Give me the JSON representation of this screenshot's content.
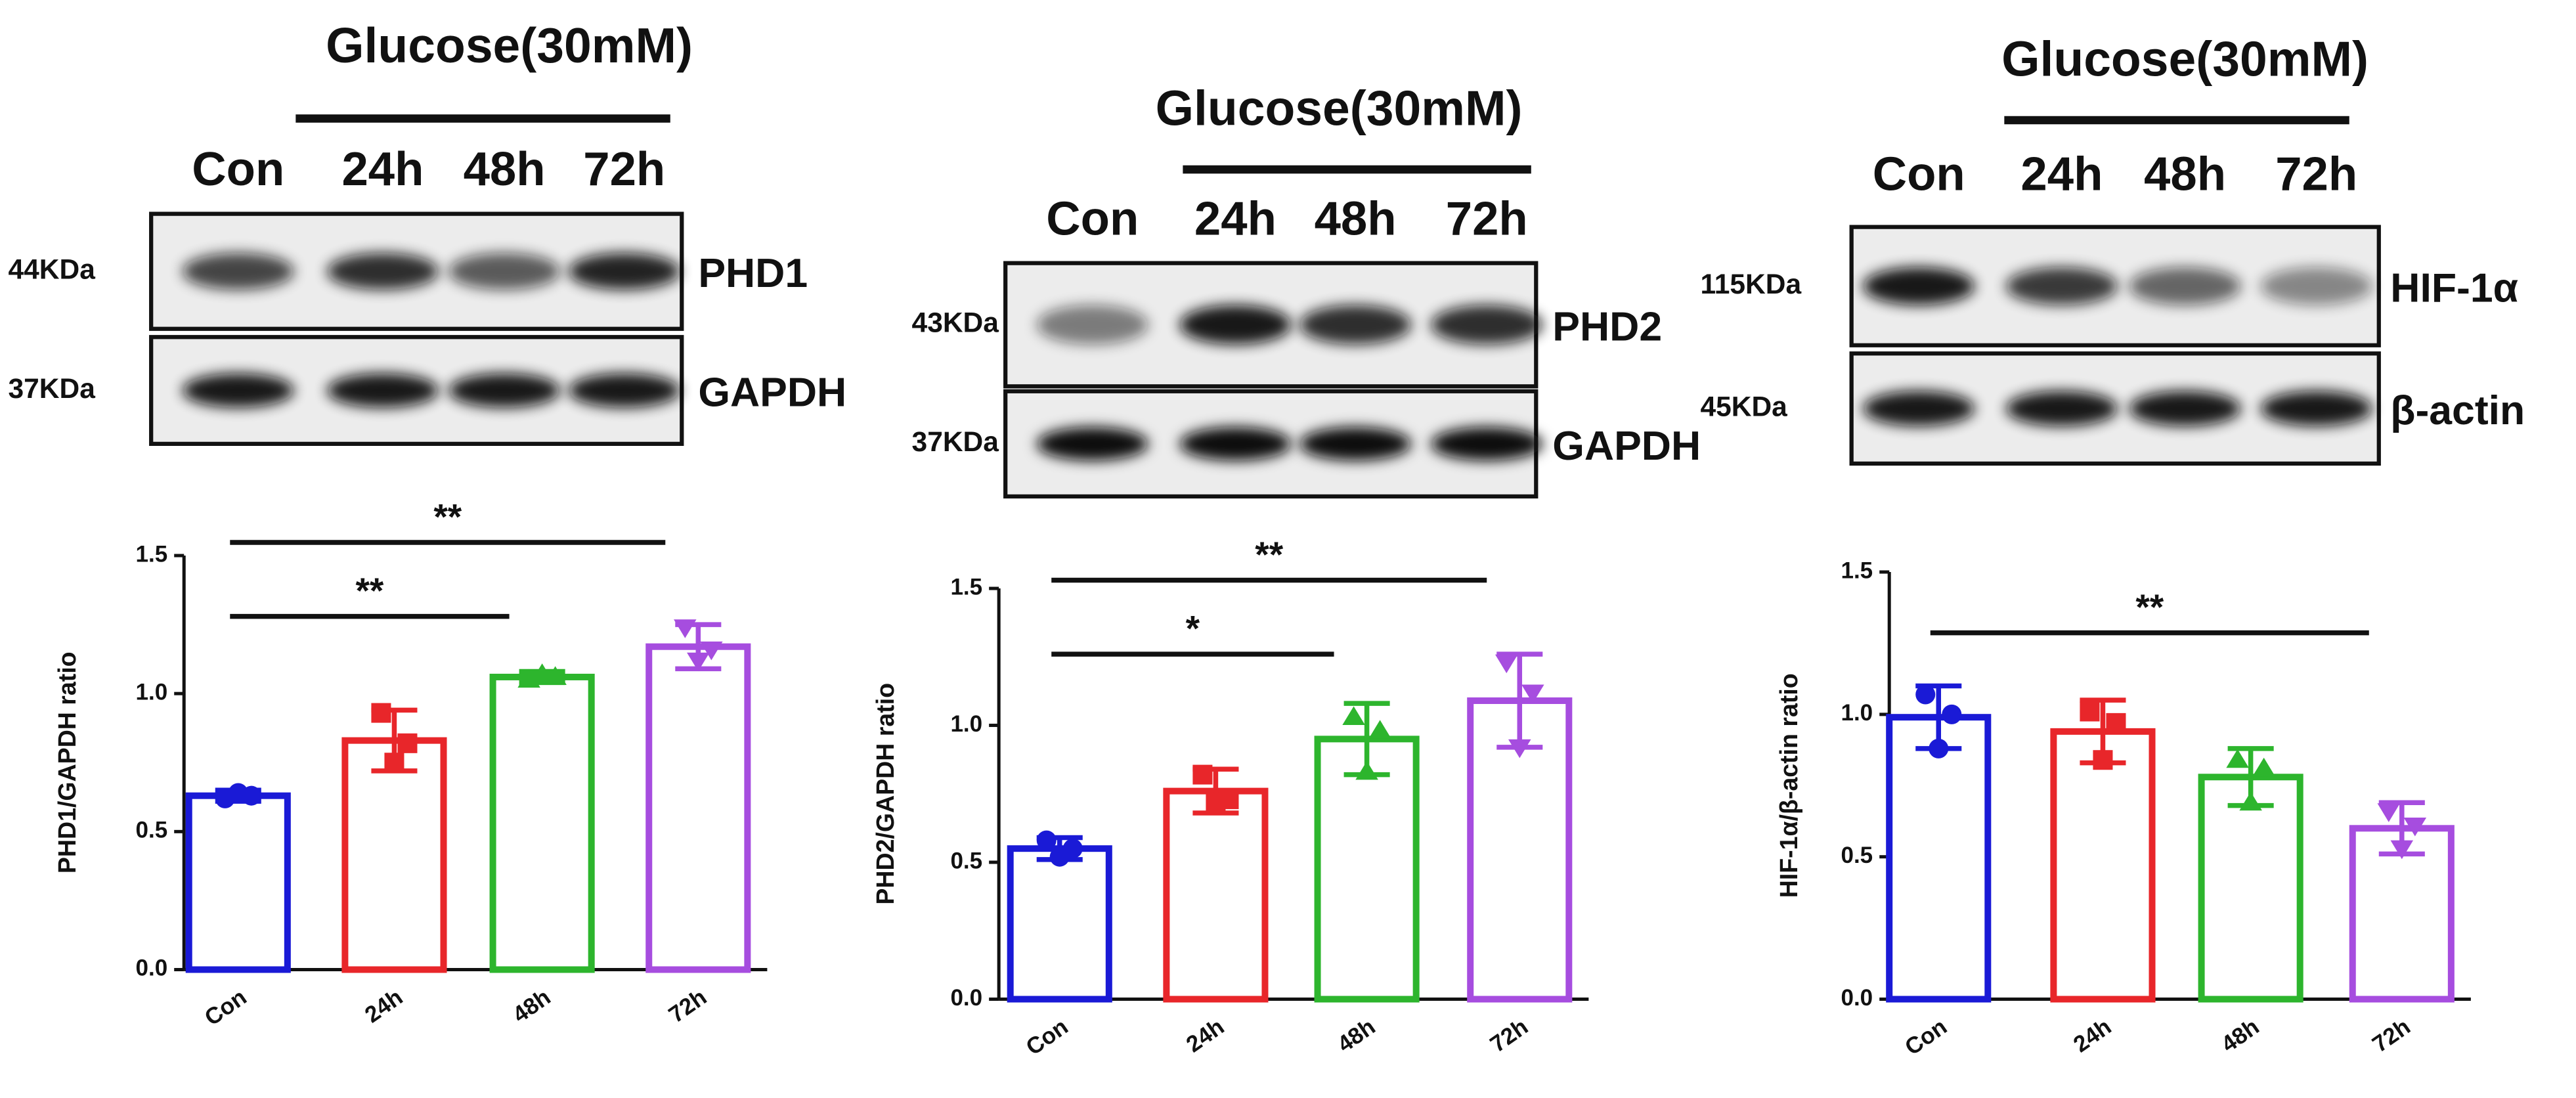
{
  "blots": [
    {
      "treatment": "Glucose(30mM)",
      "lanes": [
        "Con",
        "24h",
        "48h",
        "72h"
      ],
      "rows": [
        {
          "size": "44KDa",
          "protein": "PHD1"
        },
        {
          "size": "37KDa",
          "protein": "GAPDH"
        }
      ]
    },
    {
      "treatment": "Glucose(30mM)",
      "lanes": [
        "Con",
        "24h",
        "48h",
        "72h"
      ],
      "rows": [
        {
          "size": "43KDa",
          "protein": "PHD2"
        },
        {
          "size": "37KDa",
          "protein": "GAPDH"
        }
      ]
    },
    {
      "treatment": "Glucose(30mM)",
      "lanes": [
        "Con",
        "24h",
        "48h",
        "72h"
      ],
      "rows": [
        {
          "size": "115KDa",
          "protein": "HIF-1α"
        },
        {
          "size": "45KDa",
          "protein": "β-actin"
        }
      ]
    }
  ],
  "chart_data": [
    {
      "type": "bar",
      "ylabel": "PHD1/GAPDH ratio",
      "categories": [
        "Con",
        "24h",
        "48h",
        "72h"
      ],
      "values": [
        0.63,
        0.83,
        1.06,
        1.17
      ],
      "errors": [
        0.02,
        0.11,
        0.02,
        0.08
      ],
      "points": [
        [
          0.62,
          0.64,
          0.63
        ],
        [
          0.93,
          0.75,
          0.82
        ],
        [
          1.05,
          1.07,
          1.06
        ],
        [
          1.24,
          1.12,
          1.16
        ]
      ],
      "colors": [
        "#1a1ad6",
        "#e8262a",
        "#2db52d",
        "#a64ddf"
      ],
      "markers": [
        "circle",
        "square",
        "triangle",
        "triangle-down"
      ],
      "ylim": [
        0,
        1.5
      ],
      "yticks": [
        {
          "value": 0,
          "label": "0.0"
        },
        0.5,
        {
          "value": 1,
          "label": "1.0"
        },
        1.5
      ],
      "significance": [
        {
          "label": "**",
          "from": "Con",
          "to": "72h"
        },
        {
          "label": "**",
          "from": "Con",
          "to": "48h"
        }
      ]
    },
    {
      "type": "bar",
      "ylabel": "PHD2/GAPDH ratio",
      "categories": [
        "Con",
        "24h",
        "48h",
        "72h"
      ],
      "values": [
        0.55,
        0.76,
        0.95,
        1.09
      ],
      "errors": [
        0.04,
        0.08,
        0.13,
        0.17
      ],
      "points": [
        [
          0.58,
          0.52,
          0.55
        ],
        [
          0.82,
          0.72,
          0.73
        ],
        [
          1.03,
          0.83,
          0.98
        ],
        [
          1.23,
          0.92,
          1.12
        ]
      ],
      "colors": [
        "#1a1ad6",
        "#e8262a",
        "#2db52d",
        "#a64ddf"
      ],
      "markers": [
        "circle",
        "square",
        "triangle",
        "triangle-down"
      ],
      "ylim": [
        0,
        1.5
      ],
      "yticks": [
        {
          "value": 0,
          "label": "0.0"
        },
        0.5,
        {
          "value": 1,
          "label": "1.0"
        },
        1.5
      ],
      "significance": [
        {
          "label": "**",
          "from": "Con",
          "to": "72h"
        },
        {
          "label": "*",
          "from": "Con",
          "to": "48h"
        }
      ]
    },
    {
      "type": "bar",
      "ylabel": "HIF-1α/β-actin ratio",
      "categories": [
        "Con",
        "24h",
        "48h",
        "72h"
      ],
      "values": [
        0.99,
        0.94,
        0.78,
        0.6
      ],
      "errors": [
        0.11,
        0.11,
        0.1,
        0.09
      ],
      "points": [
        [
          1.07,
          0.88,
          1.0
        ],
        [
          1.01,
          0.84,
          0.97
        ],
        [
          0.84,
          0.69,
          0.81
        ],
        [
          0.66,
          0.53,
          0.61
        ]
      ],
      "colors": [
        "#1a1ad6",
        "#e8262a",
        "#2db52d",
        "#a64ddf"
      ],
      "markers": [
        "circle",
        "square",
        "triangle",
        "triangle-down"
      ],
      "ylim": [
        0,
        1.5
      ],
      "yticks": [
        {
          "value": 0,
          "label": "0.0"
        },
        0.5,
        {
          "value": 1,
          "label": "1.0"
        },
        1.5
      ],
      "significance": [
        {
          "label": "**",
          "from": "Con",
          "to": "72h"
        }
      ]
    }
  ]
}
